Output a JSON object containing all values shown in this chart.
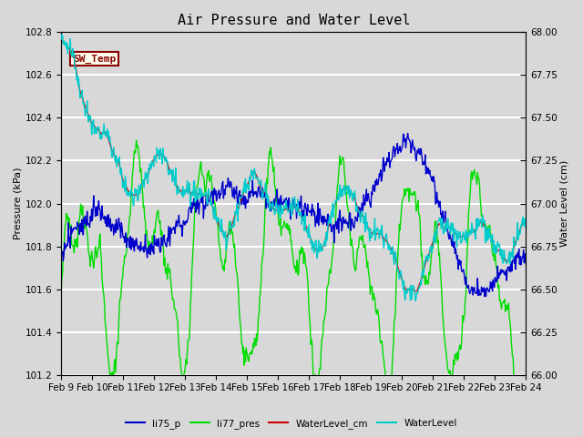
{
  "title": "Air Pressure and Water Level",
  "ylabel_left": "Pressure (kPa)",
  "ylabel_right": "Water Level (cm)",
  "ylim_left": [
    101.2,
    102.8
  ],
  "ylim_right": [
    66.0,
    68.0
  ],
  "bg_color": "#d8d8d8",
  "grid_color": "white",
  "colors": {
    "li75_p": "#0000cc",
    "li77_pres": "#00dd00",
    "WaterLevel_cm": "#cc0000",
    "WaterLevel": "#00cccc"
  },
  "ann_text": "SW_Temp",
  "ann_fg": "#8b0000",
  "ann_bg": "#fffff0",
  "date_ticks": [
    "Feb 9",
    "Feb 10",
    "Feb 11",
    "Feb 12",
    "Feb 13",
    "Feb 14",
    "Feb 15",
    "Feb 16",
    "Feb 17",
    "Feb 18",
    "Feb 19",
    "Feb 20",
    "Feb 21",
    "Feb 22",
    "Feb 23",
    "Feb 24"
  ],
  "title_fs": 11,
  "label_fs": 8,
  "tick_fs": 7.5
}
